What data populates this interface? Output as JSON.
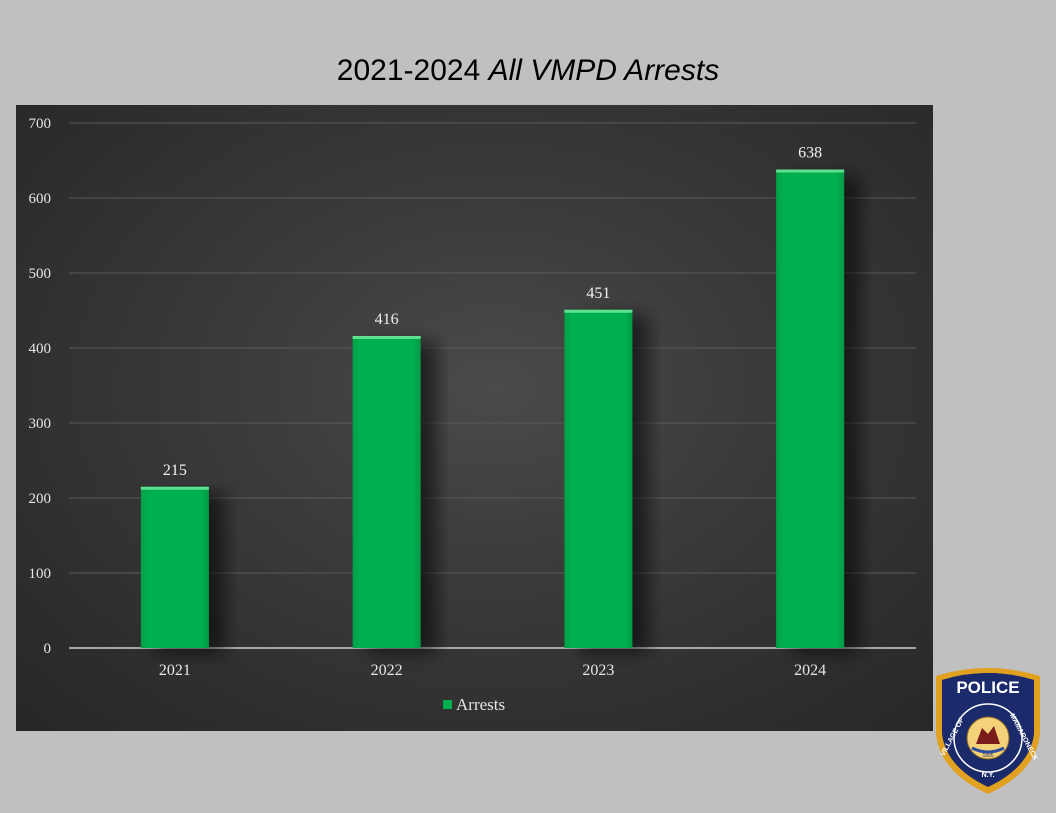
{
  "title": {
    "prefix": "2021-2024",
    "italic": "All VMPD Arrests"
  },
  "chart_data": {
    "type": "bar",
    "categories": [
      "2021",
      "2022",
      "2023",
      "2024"
    ],
    "series": [
      {
        "name": "Arrests",
        "values": [
          215,
          416,
          451,
          638
        ]
      }
    ],
    "ylim": [
      0,
      700
    ],
    "yticks": [
      0,
      100,
      200,
      300,
      400,
      500,
      600,
      700
    ],
    "grid": true,
    "legend_position": "bottom",
    "bar_color": "#00b050"
  },
  "logo": {
    "top_text": "POLICE",
    "left_text": "VILLAGE OF",
    "right_text": "MAMARONECK",
    "bottom_text": "N.Y.",
    "year": "1895"
  }
}
